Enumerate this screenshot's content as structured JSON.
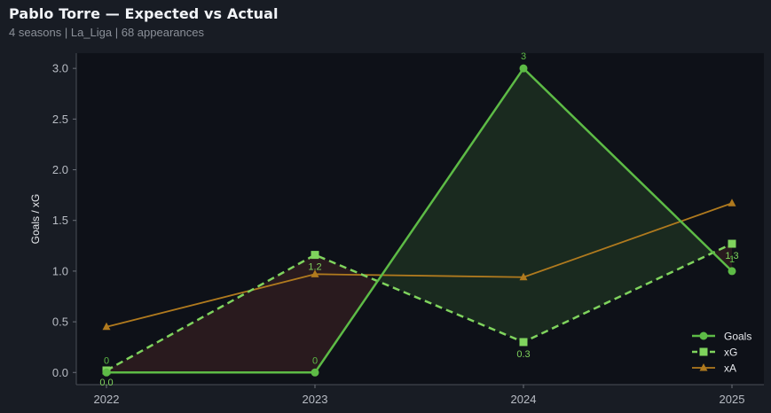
{
  "header": {
    "title": "Pablo Torre — Expected vs Actual",
    "subtitle": "4 seasons | La_Liga | 68 appearances"
  },
  "chart_data": {
    "type": "line",
    "title": "Pablo Torre — Expected vs Actual",
    "subtitle": "4 seasons | La_Liga | 68 appearances",
    "xlabel": "",
    "ylabel": "Goals / xG",
    "x": [
      "2022",
      "2023",
      "2024",
      "2025"
    ],
    "ylim": [
      -0.12,
      3.15
    ],
    "yticks": [
      "0.0",
      "0.5",
      "1.0",
      "1.5",
      "2.0",
      "2.5",
      "3.0"
    ],
    "grid": false,
    "legend_position": "bottom-right",
    "series": [
      {
        "name": "Goals",
        "values": [
          0,
          0,
          3,
          1
        ],
        "color": "#5dbb46",
        "style": "solid",
        "marker": "circle",
        "labels": [
          "0",
          "0",
          "3",
          "1"
        ]
      },
      {
        "name": "xG",
        "values": [
          0.02,
          1.16,
          0.3,
          1.27
        ],
        "color": "#7fd35d",
        "style": "dashed",
        "marker": "square",
        "labels": [
          "0.0",
          "1.2",
          "0.3",
          "1.3"
        ]
      },
      {
        "name": "xA",
        "values": [
          0.45,
          0.97,
          0.94,
          1.67
        ],
        "color": "#b07a1e",
        "style": "solid",
        "marker": "triangle"
      }
    ],
    "fill_colors": {
      "over": "#1c2e20",
      "under": "#2c1c1f"
    }
  }
}
